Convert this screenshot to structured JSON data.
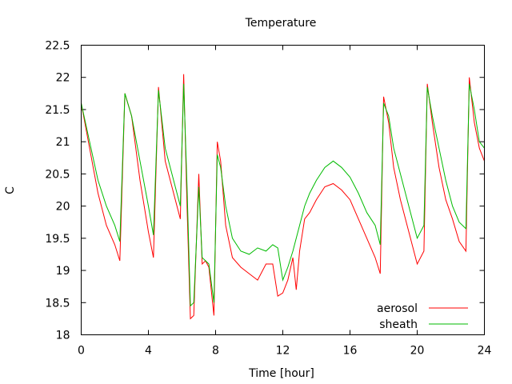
{
  "chart_data": {
    "type": "line",
    "title": "Temperature",
    "xlabel": "Time [hour]",
    "ylabel": "C",
    "xlim": [
      0,
      24
    ],
    "ylim": [
      18,
      22.5
    ],
    "xticks": [
      "0",
      "4",
      "8",
      "12",
      "16",
      "20",
      "24"
    ],
    "yticks": [
      "18",
      "18.5",
      "19",
      "19.5",
      "20",
      "20.5",
      "21",
      "21.5",
      "22",
      "22.5"
    ],
    "grid": false,
    "legend_position": "bottom-right",
    "series": [
      {
        "name": "aerosol",
        "color": "#ff0000",
        "x": [
          0,
          0.5,
          1.0,
          1.5,
          2.0,
          2.3,
          2.6,
          3.0,
          3.5,
          4.0,
          4.3,
          4.6,
          5.0,
          5.5,
          5.9,
          6.1,
          6.3,
          6.5,
          6.7,
          7.0,
          7.2,
          7.4,
          7.6,
          7.9,
          8.1,
          8.3,
          8.6,
          9.0,
          9.5,
          10.0,
          10.5,
          11.0,
          11.4,
          11.7,
          12.0,
          12.3,
          12.6,
          12.8,
          13.0,
          13.3,
          13.6,
          14.0,
          14.5,
          15.0,
          15.5,
          16.0,
          16.5,
          17.0,
          17.5,
          17.8,
          18.0,
          18.3,
          18.6,
          19.0,
          19.5,
          20.0,
          20.4,
          20.6,
          20.9,
          21.3,
          21.7,
          22.1,
          22.5,
          22.9,
          23.1,
          23.4,
          23.7,
          24.0
        ],
        "y": [
          21.6,
          20.9,
          20.2,
          19.7,
          19.4,
          19.15,
          21.75,
          21.4,
          20.4,
          19.6,
          19.2,
          21.85,
          20.7,
          20.2,
          19.8,
          22.05,
          20.0,
          18.25,
          18.3,
          20.5,
          19.1,
          19.15,
          19.05,
          18.3,
          21.0,
          20.7,
          19.7,
          19.2,
          19.05,
          18.95,
          18.85,
          19.1,
          19.1,
          18.6,
          18.65,
          18.85,
          19.2,
          18.7,
          19.3,
          19.8,
          19.9,
          20.1,
          20.3,
          20.35,
          20.25,
          20.1,
          19.8,
          19.5,
          19.2,
          18.95,
          21.7,
          21.3,
          20.6,
          20.1,
          19.6,
          19.1,
          19.3,
          21.9,
          21.3,
          20.6,
          20.1,
          19.8,
          19.45,
          19.3,
          22.0,
          21.3,
          20.9,
          20.7
        ]
      },
      {
        "name": "sheath",
        "color": "#00bb00",
        "x": [
          0,
          0.5,
          1.0,
          1.5,
          2.0,
          2.3,
          2.6,
          3.0,
          3.5,
          4.0,
          4.3,
          4.6,
          5.0,
          5.5,
          5.9,
          6.1,
          6.3,
          6.5,
          6.7,
          7.0,
          7.2,
          7.4,
          7.6,
          7.9,
          8.1,
          8.3,
          8.6,
          9.0,
          9.5,
          10.0,
          10.5,
          11.0,
          11.4,
          11.7,
          12.0,
          12.3,
          12.6,
          12.8,
          13.0,
          13.3,
          13.6,
          14.0,
          14.5,
          15.0,
          15.5,
          16.0,
          16.5,
          17.0,
          17.5,
          17.8,
          18.0,
          18.3,
          18.6,
          19.0,
          19.5,
          20.0,
          20.4,
          20.6,
          20.9,
          21.3,
          21.7,
          22.1,
          22.5,
          22.9,
          23.1,
          23.4,
          23.7,
          24.0
        ],
        "y": [
          21.6,
          21.0,
          20.4,
          20.0,
          19.7,
          19.45,
          21.75,
          21.4,
          20.7,
          20.0,
          19.55,
          21.8,
          20.9,
          20.4,
          20.0,
          21.9,
          20.3,
          18.45,
          18.5,
          20.3,
          19.2,
          19.15,
          19.1,
          18.5,
          20.8,
          20.6,
          20.0,
          19.5,
          19.3,
          19.25,
          19.35,
          19.3,
          19.4,
          19.35,
          18.85,
          19.05,
          19.3,
          19.5,
          19.7,
          20.0,
          20.2,
          20.4,
          20.6,
          20.7,
          20.6,
          20.45,
          20.2,
          19.9,
          19.7,
          19.4,
          21.6,
          21.4,
          20.9,
          20.5,
          20.0,
          19.5,
          19.7,
          21.85,
          21.4,
          20.9,
          20.4,
          20.0,
          19.75,
          19.65,
          21.9,
          21.5,
          21.0,
          20.9
        ]
      }
    ]
  }
}
